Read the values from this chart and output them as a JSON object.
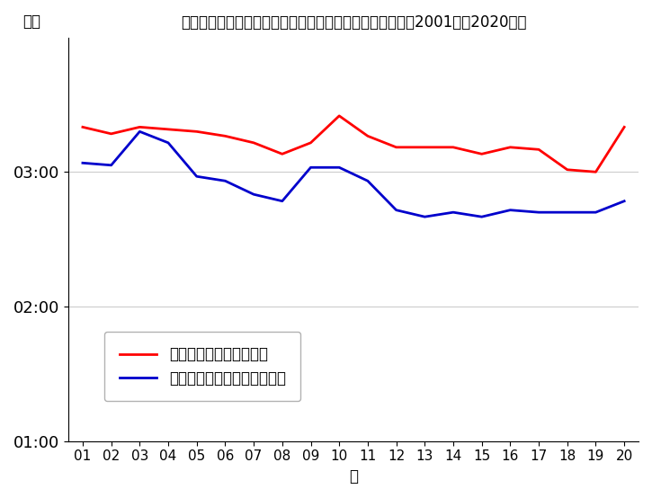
{
  "title": "平均パフォーマンス時間とパフォーマンス時間の中央値（2001年〜2020年）",
  "xlabel": "年",
  "ylabel": "時間",
  "years": [
    1,
    2,
    3,
    4,
    5,
    6,
    7,
    8,
    9,
    10,
    11,
    12,
    13,
    14,
    15,
    16,
    17,
    18,
    19,
    20
  ],
  "x_labels": [
    "01",
    "02",
    "03",
    "04",
    "05",
    "06",
    "07",
    "08",
    "09",
    "10",
    "11",
    "12",
    "13",
    "14",
    "15",
    "16",
    "17",
    "18",
    "19",
    "20"
  ],
  "mean_minutes": [
    200,
    197,
    200,
    199,
    198,
    196,
    193,
    188,
    193,
    205,
    196,
    191,
    191,
    191,
    188,
    191,
    190,
    181,
    180,
    200
  ],
  "median_minutes": [
    184,
    183,
    198,
    193,
    178,
    176,
    170,
    167,
    182,
    182,
    176,
    163,
    160,
    162,
    160,
    163,
    162,
    162,
    162,
    167
  ],
  "ylim_min_minutes": 60,
  "ylim_max_minutes": 240,
  "yticks_minutes": [
    60,
    120,
    180
  ],
  "ytick_labels": [
    "01:00",
    "02:00",
    "03:00"
  ],
  "mean_color": "#ff0000",
  "median_color": "#0000cc",
  "legend_mean": "平均パフォーマンス時間",
  "legend_median": "パフォーマンス時間の中央値",
  "line_width": 2.0,
  "bg_color": "#ffffff",
  "grid_color": "#cccccc"
}
